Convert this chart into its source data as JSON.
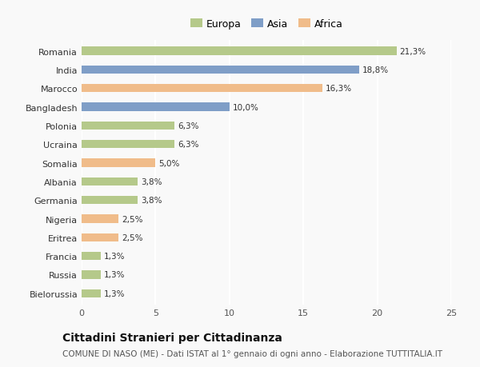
{
  "categories": [
    "Romania",
    "India",
    "Marocco",
    "Bangladesh",
    "Polonia",
    "Ucraina",
    "Somalia",
    "Albania",
    "Germania",
    "Nigeria",
    "Eritrea",
    "Francia",
    "Russia",
    "Bielorussia"
  ],
  "values": [
    21.3,
    18.8,
    16.3,
    10.0,
    6.3,
    6.3,
    5.0,
    3.8,
    3.8,
    2.5,
    2.5,
    1.3,
    1.3,
    1.3
  ],
  "labels": [
    "21,3%",
    "18,8%",
    "16,3%",
    "10,0%",
    "6,3%",
    "6,3%",
    "5,0%",
    "3,8%",
    "3,8%",
    "2,5%",
    "2,5%",
    "1,3%",
    "1,3%",
    "1,3%"
  ],
  "continents": [
    "Europa",
    "Asia",
    "Africa",
    "Asia",
    "Europa",
    "Europa",
    "Africa",
    "Europa",
    "Europa",
    "Africa",
    "Africa",
    "Europa",
    "Europa",
    "Europa"
  ],
  "colors": {
    "Europa": "#b5c98a",
    "Asia": "#7f9ec7",
    "Africa": "#f0bc8a"
  },
  "legend_items": [
    "Europa",
    "Asia",
    "Africa"
  ],
  "xlim": [
    0,
    25
  ],
  "xticks": [
    0,
    5,
    10,
    15,
    20,
    25
  ],
  "title": "Cittadini Stranieri per Cittadinanza",
  "subtitle": "COMUNE DI NASO (ME) - Dati ISTAT al 1° gennaio di ogni anno - Elaborazione TUTTITALIA.IT",
  "background_color": "#f9f9f9",
  "grid_color": "#ffffff",
  "bar_height": 0.45,
  "title_fontsize": 10,
  "subtitle_fontsize": 7.5,
  "label_fontsize": 7.5,
  "tick_fontsize": 8,
  "legend_fontsize": 9
}
